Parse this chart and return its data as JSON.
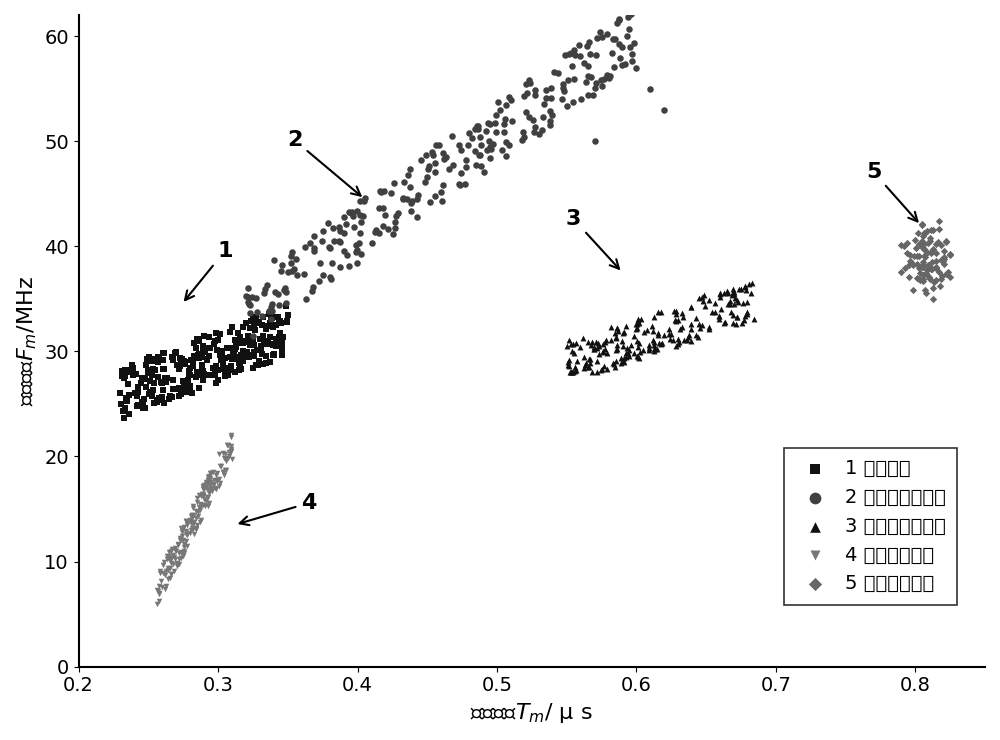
{
  "xlabel": "等效时宽$T_m$/ μ s",
  "ylabel": "等效频宽$F_m$/MHz",
  "xlim": [
    0.2,
    0.85
  ],
  "ylim": [
    0,
    62
  ],
  "xticks": [
    0.2,
    0.3,
    0.4,
    0.5,
    0.6,
    0.7,
    0.8
  ],
  "yticks": [
    0,
    10,
    20,
    30,
    40,
    50,
    60
  ],
  "fontsize_label": 16,
  "fontsize_tick": 14,
  "fontsize_legend": 14,
  "fontsize_annot": 16
}
